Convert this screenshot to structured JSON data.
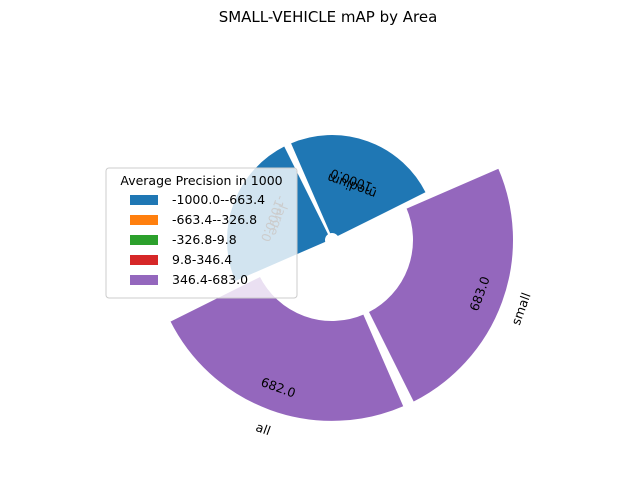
{
  "chart_data": {
    "type": "polar-bar",
    "title": "SMALL-VEHICLE mAP by Area",
    "categories": [
      "all",
      "small",
      "medium",
      "large"
    ],
    "values": [
      682.0,
      683.0,
      -1000.0,
      -1000.0
    ],
    "value_labels": [
      "682.0",
      "683.0",
      "-1000.0",
      "-1000.0"
    ],
    "bar_colors": [
      "#9467bd",
      "#9467bd",
      "#1f77b4",
      "#1f77b4"
    ],
    "legend": {
      "title": "Average Precision in 1000",
      "placement": "center-left",
      "entries": [
        {
          "label": "-1000.0--663.4",
          "color": "#1f77b4"
        },
        {
          "label": "-663.4--326.8",
          "color": "#ff7f0e"
        },
        {
          "label": "-326.8-9.8",
          "color": "#2ca02c"
        },
        {
          "label": "9.8-346.4",
          "color": "#d62728"
        },
        {
          "label": "346.4-683.0",
          "color": "#9467bd"
        }
      ]
    }
  }
}
